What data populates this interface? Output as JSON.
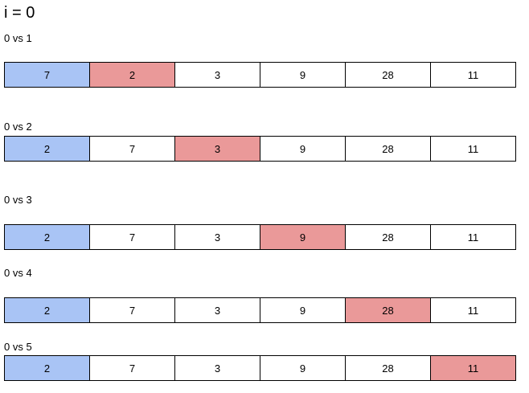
{
  "title": "i = 0",
  "colors": {
    "fixed": "#a9c4f5",
    "compared": "#ea9999",
    "default": "#ffffff"
  },
  "steps": [
    {
      "label": "0 vs 1",
      "values": [
        "7",
        "2",
        "3",
        "9",
        "28",
        "11"
      ],
      "fixed_index": 0,
      "compared_index": 1
    },
    {
      "label": "0 vs 2",
      "values": [
        "2",
        "7",
        "3",
        "9",
        "28",
        "11"
      ],
      "fixed_index": 0,
      "compared_index": 2
    },
    {
      "label": "0 vs 3",
      "values": [
        "2",
        "7",
        "3",
        "9",
        "28",
        "11"
      ],
      "fixed_index": 0,
      "compared_index": 3
    },
    {
      "label": "0 vs 4",
      "values": [
        "2",
        "7",
        "3",
        "9",
        "28",
        "11"
      ],
      "fixed_index": 0,
      "compared_index": 4
    },
    {
      "label": "0 vs 5",
      "values": [
        "2",
        "7",
        "3",
        "9",
        "28",
        "11"
      ],
      "fixed_index": 0,
      "compared_index": 5
    }
  ]
}
